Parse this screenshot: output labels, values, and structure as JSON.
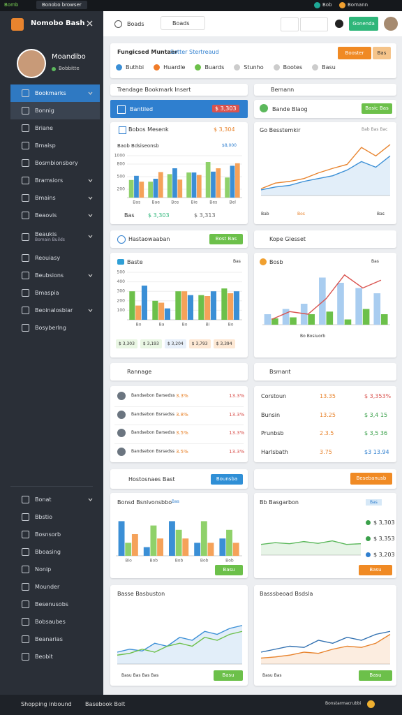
{
  "topbar": {
    "app": "Bomb",
    "tab": "Bonobo browser",
    "user": "Bob",
    "link": "Bomann"
  },
  "sidebar": {
    "logo": "Nomobo Bash",
    "profile": {
      "name": "Moandibo",
      "status": "Bobbitte"
    },
    "menu": [
      {
        "label": "Bookmarks",
        "active": true,
        "submenu": true
      },
      {
        "label": "Bonnig",
        "hover": true
      },
      {
        "label": "Briane"
      },
      {
        "label": "Bmaisp"
      },
      {
        "label": "Bosmbionsbory"
      },
      {
        "label": "Bramsiors",
        "submenu": true
      },
      {
        "label": "Bmains",
        "submenu": true
      },
      {
        "label": "Beaovis",
        "submenu": true
      },
      {
        "label": "Beaukis",
        "sub": "Bomain Builds",
        "submenu": true
      },
      {
        "label": "Reouiasy"
      },
      {
        "label": "Beubsions",
        "submenu": true
      },
      {
        "label": "Bmaspia"
      },
      {
        "label": "Beoinalosbiar",
        "submenu": true
      },
      {
        "label": "Bosyberlng"
      }
    ],
    "bottom_menu": [
      {
        "label": "Bonat",
        "submenu": true
      },
      {
        "label": "Bbstio"
      },
      {
        "label": "Bosnsorb"
      },
      {
        "label": "Bboasing"
      },
      {
        "label": "Nonip"
      },
      {
        "label": "Mounder"
      },
      {
        "label": "Besenusobs"
      },
      {
        "label": "Bobsaubes"
      },
      {
        "label": "Beanarias"
      },
      {
        "label": "Beobit"
      }
    ]
  },
  "footer": {
    "left": "Shopping inbound",
    "middle": "Basebook Bolt",
    "right": "Bonstarmacrubbi"
  },
  "header": {
    "project": "Boads",
    "search": "Boads",
    "button": "Gonenda"
  },
  "filters": {
    "title": "Fungicsed Muntaer",
    "subtitle": "Sotter Stertreaud",
    "items": [
      {
        "label": "Buthbi",
        "color": "#3b8fd6"
      },
      {
        "label": "Huardle",
        "color": "#f07c2a"
      },
      {
        "label": "Buards",
        "color": "#6cc04a"
      },
      {
        "label": "Stunho",
        "color": "#cccccc"
      },
      {
        "label": "Bootes",
        "color": "#cccccc"
      },
      {
        "label": "Basu",
        "color": "#cccccc"
      }
    ],
    "button": "Booster",
    "button2": "Bas"
  },
  "left_top": {
    "title": "Trendage Bookmark Insert",
    "banner": "Bantiled",
    "banner_value": "$ 3,303"
  },
  "right_top": {
    "title": "Bemann",
    "banner": "Bande Blaog",
    "button": "Basic Bas"
  },
  "chart_a": {
    "title": "Bobos Mesenk",
    "value": "$ 3,304",
    "subtitle": "Baob Bdsiseonsb",
    "tag": "$8,000",
    "footer": [
      "Bas",
      "$ 3,303",
      "$ 3,313"
    ],
    "chart": {
      "type": "bar",
      "ylim": [
        0,
        1000
      ],
      "yticks": [
        200,
        500,
        800,
        1000
      ],
      "categories": [
        "Bas",
        "Bae",
        "Bos",
        "Bie",
        "Bes",
        "Bel"
      ],
      "series": [
        {
          "color": "#8fd16a",
          "values": [
            420,
            380,
            560,
            600,
            850,
            480
          ]
        },
        {
          "color": "#3b8fd6",
          "values": [
            520,
            450,
            700,
            600,
            620,
            760
          ]
        },
        {
          "color": "#f5a25a",
          "values": [
            380,
            610,
            430,
            540,
            700,
            820
          ]
        }
      ]
    }
  },
  "chart_b": {
    "title": "Go Besstemkir",
    "tag": "Bab Bas Bac",
    "footer": [
      "Bab",
      "Bos",
      "Bas"
    ],
    "chart": {
      "type": "line",
      "ylim": [
        0,
        100
      ],
      "series": [
        {
          "color": "#e8842e",
          "values": [
            12,
            22,
            25,
            30,
            40,
            48,
            55,
            85,
            70,
            90
          ]
        },
        {
          "color": "#3b8fd6",
          "values": [
            10,
            15,
            18,
            25,
            30,
            35,
            45,
            60,
            50,
            70
          ],
          "area": true
        }
      ]
    }
  },
  "row_left": {
    "title": "Hastaowaaban",
    "button": "Bost Bas"
  },
  "row_right": {
    "title": "Kope Glesset"
  },
  "chart_c": {
    "title": "Baste",
    "tag": "Bas",
    "chips": [
      "$ 3,303",
      "$ 3,193",
      "$ 3,204",
      "$ 3,793",
      "$ 3,394"
    ],
    "chart": {
      "type": "bar",
      "ylim": [
        0,
        500
      ],
      "yticks": [
        100,
        200,
        300,
        400,
        500
      ],
      "categories": [
        "Bo",
        "Ba",
        "Bo",
        "Bi",
        "Bo"
      ],
      "series": [
        {
          "color": "#6cc04a",
          "values": [
            300,
            200,
            300,
            260,
            330
          ]
        },
        {
          "color": "#f5a25a",
          "values": [
            150,
            180,
            300,
            250,
            280
          ]
        },
        {
          "color": "#3b8fd6",
          "values": [
            360,
            120,
            260,
            300,
            300
          ]
        }
      ]
    }
  },
  "chart_d": {
    "title": "Bosb",
    "tag": "Bas",
    "footer": "Bo Bosiuorb",
    "chart": {
      "type": "combo",
      "ylim": [
        0,
        100
      ],
      "series": [
        {
          "kind": "bar",
          "color": "#a9cdf0",
          "values": [
            20,
            30,
            40,
            90,
            80,
            70,
            60
          ]
        },
        {
          "kind": "bar",
          "color": "#6cc04a",
          "values": [
            12,
            14,
            20,
            25,
            10,
            30,
            20
          ]
        },
        {
          "kind": "line",
          "color": "#d9534f",
          "values": [
            10,
            25,
            20,
            50,
            95,
            70,
            85
          ]
        }
      ]
    }
  },
  "head_left": {
    "title": "Rannage"
  },
  "head_right": {
    "title": "Bsmant"
  },
  "list_left": [
    {
      "name": "Bandsebon Barsedss",
      "change": "3.3%",
      "value": "13.3%"
    },
    {
      "name": "Bandsebon Bsrsedss",
      "change": "3.8%",
      "value": "13.3%"
    },
    {
      "name": "Bandsebon Barsedss",
      "change": "3.5%",
      "value": "13.3%"
    },
    {
      "name": "Bandsebon Bsrsedss",
      "change": "3.5%",
      "value": "13.3%"
    }
  ],
  "list_right": [
    {
      "name": "Corstoun",
      "change": "13.35",
      "value": "$ 3,353%",
      "color": "#d9534f"
    },
    {
      "name": "Bunsin",
      "change": "13.25",
      "value": "$ 3,4 15",
      "color": "#3aa04a"
    },
    {
      "name": "Prunbsb",
      "change": "2.3.5",
      "value": "$ 3,5 36",
      "color": "#3aa04a"
    },
    {
      "name": "Harlsbath",
      "change": "3.75",
      "value": "$3 13.94",
      "color": "#2f7fcf"
    }
  ],
  "row2_left": {
    "title": "Hostosnaes Bast",
    "button": "Bounsba"
  },
  "row2_right": {
    "button": "Besebanusb"
  },
  "chart_e": {
    "title": "Bonsd Bsnlvonsbbo",
    "tag": "Bas",
    "footer": "Basu",
    "chart": {
      "type": "bar",
      "ylim": [
        0,
        100
      ],
      "categories": [
        "Bio",
        "Bob",
        "Bob",
        "Bob",
        "Bob"
      ],
      "series": [
        {
          "color": "#3b8fd6",
          "values": [
            80,
            20,
            80,
            30,
            40
          ]
        },
        {
          "color": "#8fd16a",
          "values": [
            30,
            70,
            60,
            80,
            60
          ]
        },
        {
          "color": "#f5a25a",
          "values": [
            50,
            40,
            40,
            30,
            30
          ]
        }
      ]
    }
  },
  "chart_f": {
    "title": "Bb Basgarbon",
    "tag": "Bas",
    "legend": [
      "$ 3,303",
      "$ 3,353",
      "$ 3,203"
    ],
    "footer": "Basu",
    "chart": {
      "type": "line",
      "ylim": [
        0,
        100
      ],
      "series": [
        {
          "color": "#5cb85c",
          "values": [
            30,
            35,
            32,
            38,
            33,
            40,
            30,
            32
          ],
          "area": true
        }
      ]
    }
  },
  "chart_g": {
    "title": "Basse Basbuston",
    "footer": "Basu Bas Bas Bas",
    "button": "Basu",
    "chart": {
      "type": "line",
      "ylim": [
        0,
        100
      ],
      "series": [
        {
          "color": "#3b8fd6",
          "values": [
            20,
            25,
            22,
            35,
            30,
            45,
            40,
            55,
            50,
            60,
            65
          ],
          "area": true
        },
        {
          "color": "#6cc04a",
          "values": [
            15,
            18,
            25,
            20,
            30,
            35,
            30,
            45,
            40,
            50,
            55
          ]
        }
      ]
    }
  },
  "chart_h": {
    "title": "Basssbeoad Bsdsla",
    "footer": "Basu Bas",
    "button": "Basu",
    "chart": {
      "type": "line",
      "ylim": [
        0,
        100
      ],
      "series": [
        {
          "color": "#2f6fb0",
          "values": [
            20,
            25,
            30,
            28,
            40,
            35,
            45,
            40,
            50,
            55
          ]
        },
        {
          "color": "#e8842e",
          "values": [
            10,
            12,
            15,
            20,
            18,
            25,
            30,
            28,
            35,
            50
          ],
          "area": true
        }
      ]
    }
  }
}
